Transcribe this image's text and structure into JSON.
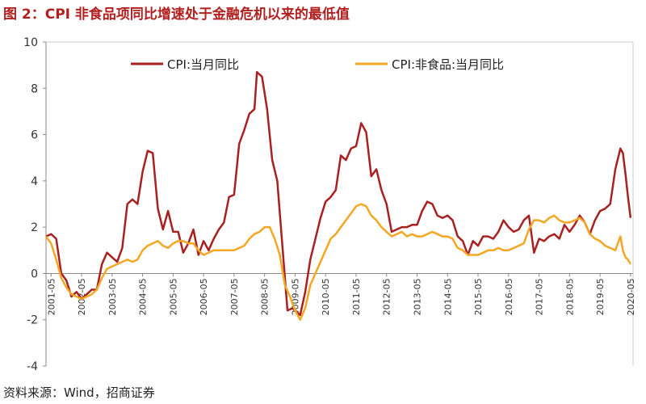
{
  "figure": {
    "title": "图 2：CPI 非食品项同比增速处于金融危机以来的最低值",
    "source": "资料来源：Wind，招商证券",
    "colors": {
      "title": "#b21f1f",
      "cpi": "#a82020",
      "nonfood": "#f5a623"
    }
  },
  "chart_data": {
    "type": "line",
    "title": "图 2：CPI 非食品项同比增速处于金融危机以来的最低值",
    "xlabel": "",
    "ylabel": "",
    "ylim": [
      -4,
      10
    ],
    "yticks": [
      "10",
      "8",
      "6",
      "4",
      "2",
      "0",
      "-2",
      "-4"
    ],
    "xticks": [
      "2001-05",
      "2002-05",
      "2003-05",
      "2004-05",
      "2005-05",
      "2006-05",
      "2007-05",
      "2008-05",
      "2009-05",
      "2010-05",
      "2011-05",
      "2012-05",
      "2013-05",
      "2014-05",
      "2015-05",
      "2016-05",
      "2017-05",
      "2018-05",
      "2019-05",
      "2020-05"
    ],
    "xrange": [
      "2001-03",
      "2020-06"
    ],
    "grid": false,
    "legend": "top",
    "series": [
      {
        "name": "CPI:当月同比",
        "color": "#a82020",
        "points": [
          [
            "2001-03",
            1.6
          ],
          [
            "2001-05",
            1.7
          ],
          [
            "2001-07",
            1.5
          ],
          [
            "2001-09",
            0.0
          ],
          [
            "2001-11",
            -0.3
          ],
          [
            "2002-01",
            -1.0
          ],
          [
            "2002-03",
            -0.8
          ],
          [
            "2002-05",
            -1.1
          ],
          [
            "2002-07",
            -0.9
          ],
          [
            "2002-09",
            -0.7
          ],
          [
            "2002-11",
            -0.7
          ],
          [
            "2003-01",
            0.4
          ],
          [
            "2003-03",
            0.9
          ],
          [
            "2003-05",
            0.7
          ],
          [
            "2003-07",
            0.5
          ],
          [
            "2003-09",
            1.1
          ],
          [
            "2003-11",
            3.0
          ],
          [
            "2004-01",
            3.2
          ],
          [
            "2004-03",
            3.0
          ],
          [
            "2004-05",
            4.4
          ],
          [
            "2004-07",
            5.3
          ],
          [
            "2004-09",
            5.2
          ],
          [
            "2004-11",
            2.8
          ],
          [
            "2005-01",
            1.9
          ],
          [
            "2005-03",
            2.7
          ],
          [
            "2005-05",
            1.8
          ],
          [
            "2005-07",
            1.8
          ],
          [
            "2005-09",
            0.9
          ],
          [
            "2005-11",
            1.3
          ],
          [
            "2006-01",
            1.9
          ],
          [
            "2006-03",
            0.8
          ],
          [
            "2006-05",
            1.4
          ],
          [
            "2006-07",
            1.0
          ],
          [
            "2006-09",
            1.5
          ],
          [
            "2006-11",
            1.9
          ],
          [
            "2007-01",
            2.2
          ],
          [
            "2007-03",
            3.3
          ],
          [
            "2007-05",
            3.4
          ],
          [
            "2007-07",
            5.6
          ],
          [
            "2007-09",
            6.2
          ],
          [
            "2007-11",
            6.9
          ],
          [
            "2008-01",
            7.1
          ],
          [
            "2008-02",
            8.7
          ],
          [
            "2008-04",
            8.5
          ],
          [
            "2008-06",
            7.1
          ],
          [
            "2008-08",
            4.9
          ],
          [
            "2008-10",
            4.0
          ],
          [
            "2008-12",
            1.2
          ],
          [
            "2009-02",
            -1.6
          ],
          [
            "2009-04",
            -1.5
          ],
          [
            "2009-06",
            -1.7
          ],
          [
            "2009-07",
            -1.8
          ],
          [
            "2009-09",
            -0.8
          ],
          [
            "2009-11",
            0.6
          ],
          [
            "2010-01",
            1.5
          ],
          [
            "2010-03",
            2.4
          ],
          [
            "2010-05",
            3.1
          ],
          [
            "2010-07",
            3.3
          ],
          [
            "2010-09",
            3.6
          ],
          [
            "2010-11",
            5.1
          ],
          [
            "2011-01",
            4.9
          ],
          [
            "2011-03",
            5.4
          ],
          [
            "2011-05",
            5.5
          ],
          [
            "2011-07",
            6.5
          ],
          [
            "2011-09",
            6.1
          ],
          [
            "2011-11",
            4.2
          ],
          [
            "2012-01",
            4.5
          ],
          [
            "2012-03",
            3.6
          ],
          [
            "2012-05",
            3.0
          ],
          [
            "2012-07",
            1.8
          ],
          [
            "2012-09",
            1.9
          ],
          [
            "2012-11",
            2.0
          ],
          [
            "2013-01",
            2.0
          ],
          [
            "2013-03",
            2.1
          ],
          [
            "2013-05",
            2.1
          ],
          [
            "2013-07",
            2.7
          ],
          [
            "2013-09",
            3.1
          ],
          [
            "2013-11",
            3.0
          ],
          [
            "2014-01",
            2.5
          ],
          [
            "2014-03",
            2.4
          ],
          [
            "2014-05",
            2.5
          ],
          [
            "2014-07",
            2.3
          ],
          [
            "2014-09",
            1.6
          ],
          [
            "2014-11",
            1.4
          ],
          [
            "2015-01",
            0.8
          ],
          [
            "2015-03",
            1.4
          ],
          [
            "2015-05",
            1.2
          ],
          [
            "2015-07",
            1.6
          ],
          [
            "2015-09",
            1.6
          ],
          [
            "2015-11",
            1.5
          ],
          [
            "2016-01",
            1.8
          ],
          [
            "2016-03",
            2.3
          ],
          [
            "2016-05",
            2.0
          ],
          [
            "2016-07",
            1.8
          ],
          [
            "2016-09",
            1.9
          ],
          [
            "2016-11",
            2.3
          ],
          [
            "2017-01",
            2.5
          ],
          [
            "2017-03",
            0.9
          ],
          [
            "2017-05",
            1.5
          ],
          [
            "2017-07",
            1.4
          ],
          [
            "2017-09",
            1.6
          ],
          [
            "2017-11",
            1.7
          ],
          [
            "2018-01",
            1.5
          ],
          [
            "2018-03",
            2.1
          ],
          [
            "2018-05",
            1.8
          ],
          [
            "2018-07",
            2.1
          ],
          [
            "2018-09",
            2.5
          ],
          [
            "2018-11",
            2.2
          ],
          [
            "2019-01",
            1.7
          ],
          [
            "2019-03",
            2.3
          ],
          [
            "2019-05",
            2.7
          ],
          [
            "2019-07",
            2.8
          ],
          [
            "2019-09",
            3.0
          ],
          [
            "2019-11",
            4.5
          ],
          [
            "2020-01",
            5.4
          ],
          [
            "2020-02",
            5.2
          ],
          [
            "2020-03",
            4.3
          ],
          [
            "2020-04",
            3.3
          ],
          [
            "2020-05",
            2.4
          ]
        ]
      },
      {
        "name": "CPI:非食品:当月同比",
        "color": "#f5a623",
        "points": [
          [
            "2001-03",
            1.6
          ],
          [
            "2001-05",
            1.3
          ],
          [
            "2001-07",
            0.6
          ],
          [
            "2001-09",
            -0.2
          ],
          [
            "2001-11",
            -0.6
          ],
          [
            "2002-01",
            -0.9
          ],
          [
            "2002-03",
            -1.0
          ],
          [
            "2002-05",
            -1.1
          ],
          [
            "2002-07",
            -1.0
          ],
          [
            "2002-09",
            -0.9
          ],
          [
            "2002-11",
            -0.7
          ],
          [
            "2003-01",
            -0.2
          ],
          [
            "2003-03",
            0.2
          ],
          [
            "2003-05",
            0.3
          ],
          [
            "2003-07",
            0.4
          ],
          [
            "2003-09",
            0.5
          ],
          [
            "2003-11",
            0.6
          ],
          [
            "2004-01",
            0.5
          ],
          [
            "2004-03",
            0.6
          ],
          [
            "2004-05",
            1.0
          ],
          [
            "2004-07",
            1.2
          ],
          [
            "2004-09",
            1.3
          ],
          [
            "2004-11",
            1.4
          ],
          [
            "2005-01",
            1.2
          ],
          [
            "2005-03",
            1.1
          ],
          [
            "2005-05",
            1.3
          ],
          [
            "2005-07",
            1.4
          ],
          [
            "2005-09",
            1.4
          ],
          [
            "2005-11",
            1.3
          ],
          [
            "2006-01",
            1.3
          ],
          [
            "2006-03",
            1.0
          ],
          [
            "2006-05",
            0.8
          ],
          [
            "2006-07",
            0.9
          ],
          [
            "2006-09",
            1.0
          ],
          [
            "2006-11",
            1.0
          ],
          [
            "2007-01",
            1.0
          ],
          [
            "2007-03",
            1.0
          ],
          [
            "2007-05",
            1.0
          ],
          [
            "2007-07",
            1.1
          ],
          [
            "2007-09",
            1.2
          ],
          [
            "2007-11",
            1.5
          ],
          [
            "2008-01",
            1.7
          ],
          [
            "2008-03",
            1.8
          ],
          [
            "2008-05",
            2.0
          ],
          [
            "2008-07",
            2.0
          ],
          [
            "2008-09",
            1.5
          ],
          [
            "2008-11",
            0.8
          ],
          [
            "2009-01",
            -0.5
          ],
          [
            "2009-03",
            -1.0
          ],
          [
            "2009-05",
            -1.6
          ],
          [
            "2009-07",
            -2.0
          ],
          [
            "2009-09",
            -1.5
          ],
          [
            "2009-11",
            -0.5
          ],
          [
            "2010-01",
            0.0
          ],
          [
            "2010-03",
            0.5
          ],
          [
            "2010-05",
            1.0
          ],
          [
            "2010-07",
            1.5
          ],
          [
            "2010-09",
            1.7
          ],
          [
            "2010-11",
            2.0
          ],
          [
            "2011-01",
            2.3
          ],
          [
            "2011-03",
            2.6
          ],
          [
            "2011-05",
            2.9
          ],
          [
            "2011-07",
            3.0
          ],
          [
            "2011-09",
            2.9
          ],
          [
            "2011-11",
            2.5
          ],
          [
            "2012-01",
            2.3
          ],
          [
            "2012-03",
            2.0
          ],
          [
            "2012-05",
            1.8
          ],
          [
            "2012-07",
            1.6
          ],
          [
            "2012-09",
            1.7
          ],
          [
            "2012-11",
            1.8
          ],
          [
            "2013-01",
            1.6
          ],
          [
            "2013-03",
            1.7
          ],
          [
            "2013-05",
            1.6
          ],
          [
            "2013-07",
            1.6
          ],
          [
            "2013-09",
            1.7
          ],
          [
            "2013-11",
            1.8
          ],
          [
            "2014-01",
            1.7
          ],
          [
            "2014-03",
            1.6
          ],
          [
            "2014-05",
            1.6
          ],
          [
            "2014-07",
            1.5
          ],
          [
            "2014-09",
            1.1
          ],
          [
            "2014-11",
            1.0
          ],
          [
            "2015-01",
            0.8
          ],
          [
            "2015-03",
            0.8
          ],
          [
            "2015-05",
            0.8
          ],
          [
            "2015-07",
            0.9
          ],
          [
            "2015-09",
            1.0
          ],
          [
            "2015-11",
            1.0
          ],
          [
            "2016-01",
            1.1
          ],
          [
            "2016-03",
            1.0
          ],
          [
            "2016-05",
            1.0
          ],
          [
            "2016-07",
            1.1
          ],
          [
            "2016-09",
            1.2
          ],
          [
            "2016-11",
            1.3
          ],
          [
            "2017-01",
            1.9
          ],
          [
            "2017-03",
            2.3
          ],
          [
            "2017-05",
            2.3
          ],
          [
            "2017-07",
            2.2
          ],
          [
            "2017-09",
            2.4
          ],
          [
            "2017-11",
            2.5
          ],
          [
            "2018-01",
            2.3
          ],
          [
            "2018-03",
            2.2
          ],
          [
            "2018-05",
            2.2
          ],
          [
            "2018-07",
            2.3
          ],
          [
            "2018-09",
            2.4
          ],
          [
            "2018-11",
            2.2
          ],
          [
            "2019-01",
            1.7
          ],
          [
            "2019-03",
            1.5
          ],
          [
            "2019-05",
            1.4
          ],
          [
            "2019-07",
            1.2
          ],
          [
            "2019-09",
            1.1
          ],
          [
            "2019-11",
            1.0
          ],
          [
            "2020-01",
            1.6
          ],
          [
            "2020-02",
            1.0
          ],
          [
            "2020-03",
            0.7
          ],
          [
            "2020-04",
            0.6
          ],
          [
            "2020-05",
            0.4
          ]
        ]
      }
    ]
  }
}
